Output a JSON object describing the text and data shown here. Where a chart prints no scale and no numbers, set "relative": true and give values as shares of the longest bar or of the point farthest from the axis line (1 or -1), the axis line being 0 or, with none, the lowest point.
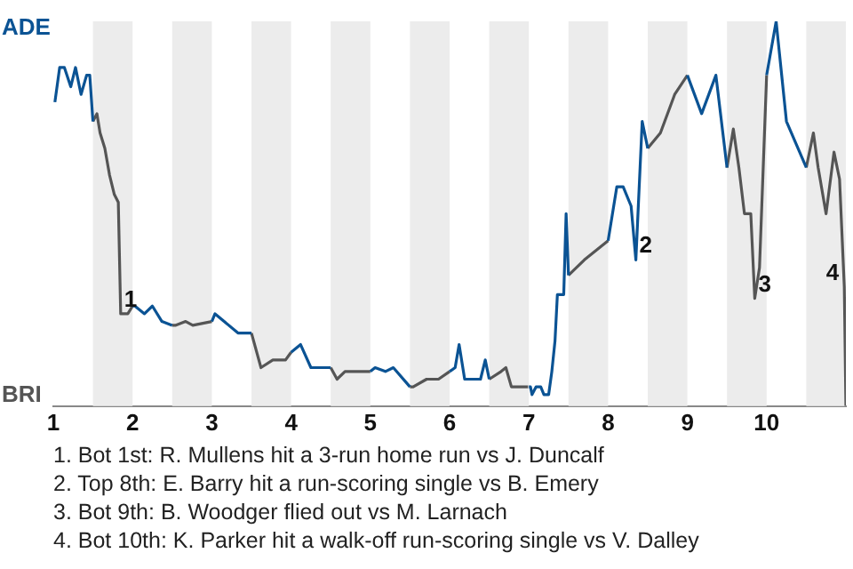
{
  "chart_data": {
    "type": "line",
    "relative": true,
    "xlim": [
      1,
      11
    ],
    "xticks": [
      1,
      2,
      3,
      4,
      5,
      6,
      7,
      8,
      9,
      10
    ],
    "legend": false,
    "marker": "none",
    "series": [
      {
        "color": "#0b5394",
        "x": [
          1.02,
          1.08,
          1.14,
          1.22,
          1.28,
          1.35,
          1.42,
          1.46,
          1.5,
          1.75,
          2.0,
          2.03,
          2.15,
          2.25,
          2.37,
          2.5,
          2.75,
          3.0,
          3.04,
          3.33,
          3.5,
          3.75,
          4.0,
          4.12,
          4.25,
          4.43,
          4.5,
          4.75,
          5.0,
          5.06,
          5.19,
          5.29,
          5.5,
          5.75,
          6.0,
          6.07,
          6.12,
          6.19,
          6.28,
          6.39,
          6.45,
          6.5,
          6.75,
          7.0,
          7.02,
          7.04,
          7.09,
          7.15,
          7.19,
          7.25,
          7.29,
          7.33,
          7.36,
          7.44,
          7.47,
          7.5,
          7.75,
          8.0,
          8.11,
          8.19,
          8.29,
          8.35,
          8.43,
          8.5,
          8.75,
          9.0,
          9.18,
          9.36,
          9.5,
          9.75,
          10.0,
          10.12,
          10.25,
          10.5
        ],
        "values": [
          0.79,
          0.88,
          0.88,
          0.83,
          0.88,
          0.81,
          0.86,
          0.86,
          0.74,
          null,
          0.26,
          0.26,
          0.24,
          0.26,
          0.22,
          0.21,
          null,
          0.22,
          0.24,
          0.19,
          0.19,
          null,
          0.14,
          0.16,
          0.1,
          0.1,
          0.1,
          null,
          0.09,
          0.1,
          0.09,
          0.1,
          0.05,
          null,
          0.09,
          0.1,
          0.16,
          0.07,
          0.07,
          0.07,
          0.12,
          0.07,
          null,
          0.05,
          0.05,
          0.03,
          0.05,
          0.05,
          0.03,
          0.03,
          0.09,
          0.17,
          0.29,
          0.29,
          0.5,
          0.34,
          null,
          0.43,
          0.57,
          0.57,
          0.52,
          0.38,
          0.74,
          0.67,
          null,
          0.86,
          0.76,
          0.86,
          0.62,
          null,
          0.86,
          1,
          0.74,
          0.62
        ]
      },
      {
        "color": "#555555",
        "x": [
          1.5,
          1.55,
          1.59,
          1.65,
          1.71,
          1.77,
          1.82,
          1.85,
          1.94,
          2.0,
          2.25,
          2.5,
          2.54,
          2.67,
          2.76,
          3.0,
          3.25,
          3.5,
          3.62,
          3.77,
          3.93,
          4.0,
          4.25,
          4.5,
          4.58,
          4.68,
          4.78,
          4.88,
          4.99,
          5.0,
          5.25,
          5.5,
          5.54,
          5.71,
          5.86,
          6.0,
          6.25,
          6.5,
          6.65,
          6.71,
          6.78,
          6.99,
          7.0,
          7.25,
          7.5,
          7.7,
          8.0,
          8.25,
          8.5,
          8.66,
          8.84,
          9.0,
          9.25,
          9.5,
          9.58,
          9.65,
          9.72,
          9.8,
          9.85,
          9.91,
          10.0,
          10.25,
          10.5,
          10.59,
          10.65,
          10.75,
          10.85,
          10.92,
          10.98,
          11.0
        ],
        "values": [
          0.74,
          0.76,
          0.71,
          0.67,
          0.6,
          0.55,
          0.53,
          0.24,
          0.24,
          0.26,
          null,
          0.21,
          0.21,
          0.22,
          0.21,
          0.22,
          null,
          0.19,
          0.1,
          0.12,
          0.12,
          0.14,
          null,
          0.1,
          0.07,
          0.09,
          0.09,
          0.09,
          0.09,
          0.09,
          null,
          0.05,
          0.05,
          0.07,
          0.07,
          0.09,
          null,
          0.07,
          0.09,
          0.1,
          0.05,
          0.05,
          0.05,
          null,
          0.34,
          0.38,
          0.43,
          null,
          0.67,
          0.71,
          0.81,
          0.86,
          null,
          0.62,
          0.72,
          0.62,
          0.5,
          0.5,
          0.28,
          0.36,
          0.86,
          null,
          0.62,
          0.71,
          0.62,
          0.5,
          0.66,
          0.59,
          0.31,
          0
        ]
      }
    ],
    "bands": [
      {
        "axis": "x",
        "from": 1.5,
        "to": 2,
        "color": "#ececec"
      },
      {
        "axis": "x",
        "from": 2.5,
        "to": 3,
        "color": "#ececec"
      },
      {
        "axis": "x",
        "from": 3.5,
        "to": 4,
        "color": "#ececec"
      },
      {
        "axis": "x",
        "from": 4.5,
        "to": 5,
        "color": "#ececec"
      },
      {
        "axis": "x",
        "from": 5.5,
        "to": 6,
        "color": "#ececec"
      },
      {
        "axis": "x",
        "from": 6.5,
        "to": 7,
        "color": "#ececec"
      },
      {
        "axis": "x",
        "from": 7.5,
        "to": 8,
        "color": "#ececec"
      },
      {
        "axis": "x",
        "from": 8.5,
        "to": 9,
        "color": "#ececec"
      },
      {
        "axis": "x",
        "from": 9.5,
        "to": 10,
        "color": "#ececec"
      },
      {
        "axis": "x",
        "from": 10.5,
        "to": 11,
        "color": "#ececec"
      }
    ],
    "annotations": [
      "ADE",
      "BRI",
      {
        "text": "1",
        "x": 1.85,
        "y": 0.24
      },
      {
        "text": "2",
        "x": 8.35,
        "y": 0.38
      },
      {
        "text": "3",
        "x": 9.85,
        "y": 0.28
      },
      {
        "text": "4",
        "x": 10.98,
        "y": 0.31
      },
      "1. Bot 1st: R. Mullens hit a 3-run home run vs J. Duncalf",
      "2. Top 8th: E. Barry hit a run-scoring single vs B. Emery",
      "3. Bot 9th: B. Woodger flied out vs M. Larnach",
      "4. Bot 10th: K. Parker hit a walk-off run-scoring single vs V. Dalley"
    ]
  }
}
